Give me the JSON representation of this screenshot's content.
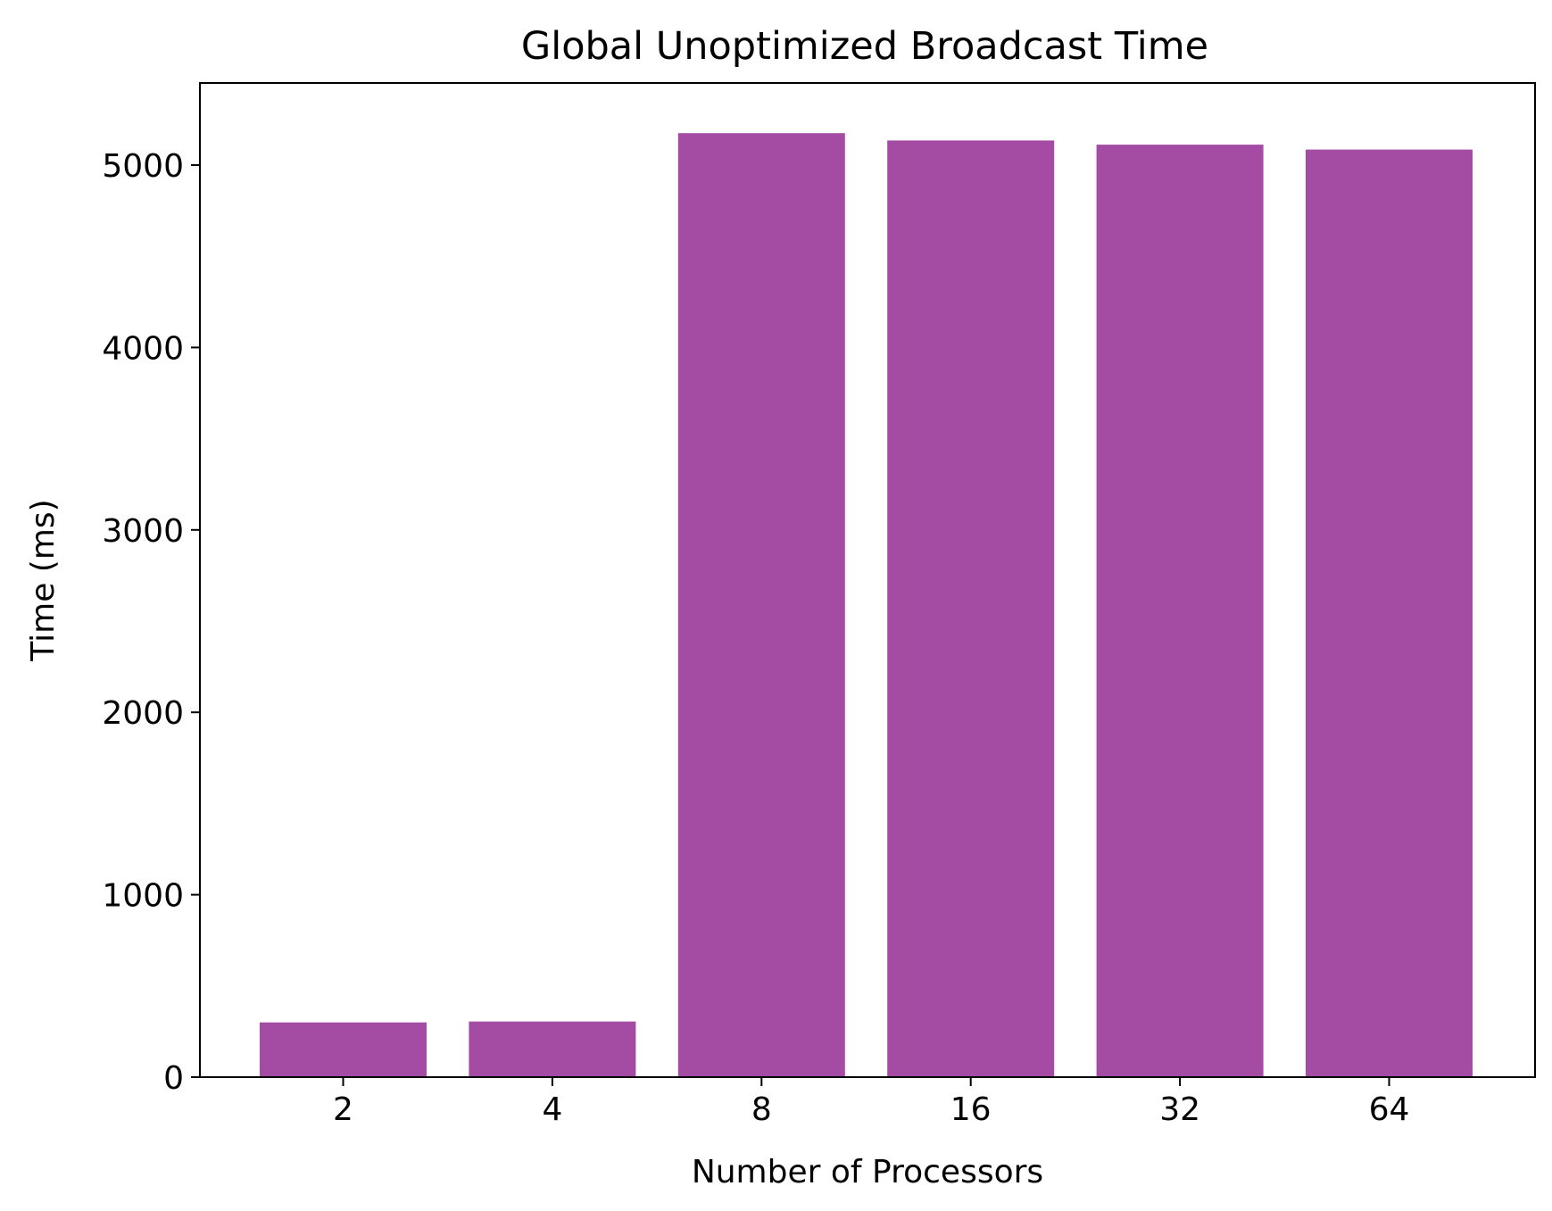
{
  "chart_data": {
    "type": "bar",
    "title": "Global Unoptimized Broadcast Time",
    "xlabel": "Number of Processors",
    "ylabel": "Time (ms)",
    "categories": [
      "2",
      "4",
      "8",
      "16",
      "32",
      "64"
    ],
    "values": [
      300,
      305,
      5175,
      5135,
      5112,
      5085
    ],
    "ylim": [
      0,
      5450
    ],
    "yticks": [
      0,
      1000,
      2000,
      3000,
      4000,
      5000
    ],
    "ytick_labels": [
      "0",
      "1000",
      "2000",
      "3000",
      "4000",
      "5000"
    ],
    "bar_color": "#a44ba3",
    "grid": false,
    "legend": "none"
  }
}
